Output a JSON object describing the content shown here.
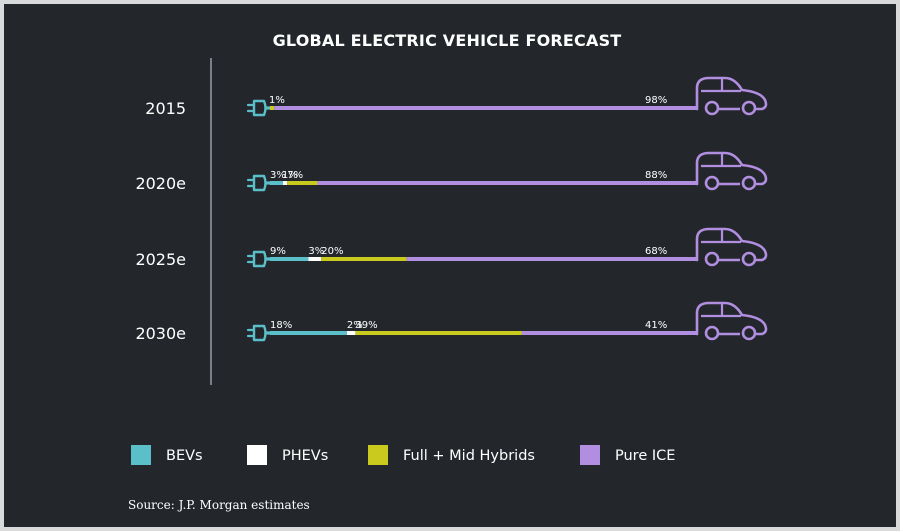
{
  "chart_data": {
    "type": "bar",
    "title": "GLOBAL ELECTRIC VEHICLE FORECAST",
    "categories": [
      "2015",
      "2020e",
      "2025e",
      "2030e"
    ],
    "series": [
      {
        "name": "BEVs",
        "color": "#5bbfc9",
        "values": [
          0,
          3,
          9,
          18
        ],
        "labels": [
          "",
          "3%",
          "9%",
          "18%"
        ]
      },
      {
        "name": "PHEVs",
        "color": "#ffffff",
        "values": [
          0,
          1,
          3,
          2
        ],
        "labels": [
          "",
          "1%",
          "3%",
          "2%"
        ]
      },
      {
        "name": "Full + Mid Hybrids",
        "color": "#c9c91e",
        "values": [
          1,
          7,
          20,
          39
        ],
        "labels": [
          "1%",
          "7%",
          "20%",
          "39%"
        ]
      },
      {
        "name": "Pure ICE",
        "color": "#b28ee0",
        "values": [
          98,
          88,
          68,
          41
        ],
        "labels": [
          "98%",
          "88%",
          "68%",
          "41%"
        ]
      }
    ],
    "unit": "%",
    "stacked": true,
    "orientation": "horizontal",
    "legend_position": "bottom",
    "grid": false
  },
  "icons": {
    "row_start": "plug-icon",
    "row_end": "car-icon"
  },
  "source": "Source: J.P. Morgan estimates"
}
